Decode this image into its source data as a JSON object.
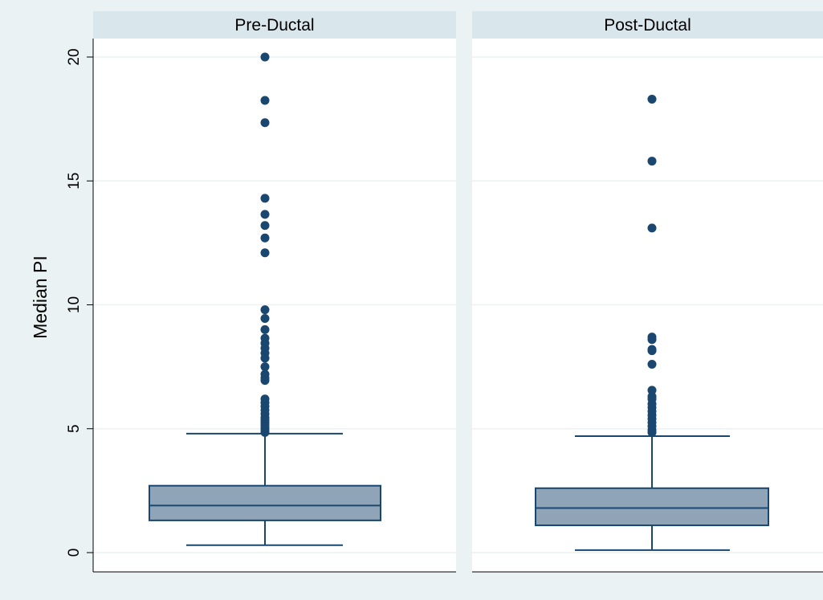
{
  "chart_data": {
    "type": "boxplot",
    "ylabel": "Median PI",
    "ylim": [
      0,
      20
    ],
    "yticks": [
      0,
      5,
      10,
      15,
      20
    ],
    "grid": true,
    "panels": [
      {
        "title": "Pre-Ductal",
        "whisker_low": 0.3,
        "q1": 1.3,
        "median": 1.9,
        "q3": 2.7,
        "whisker_high": 4.8,
        "outliers": [
          4.85,
          4.95,
          5.05,
          5.15,
          5.25,
          5.35,
          5.45,
          5.6,
          5.75,
          5.9,
          6.05,
          6.2,
          6.95,
          7.05,
          7.2,
          7.5,
          7.85,
          8.05,
          8.25,
          8.45,
          8.65,
          9.0,
          9.45,
          9.8,
          12.1,
          12.7,
          13.2,
          13.65,
          14.3,
          17.35,
          18.25,
          20.0
        ]
      },
      {
        "title": "Post-Ductal",
        "whisker_low": 0.1,
        "q1": 1.1,
        "median": 1.8,
        "q3": 2.6,
        "whisker_high": 4.7,
        "outliers": [
          4.85,
          4.95,
          5.1,
          5.25,
          5.4,
          5.55,
          5.7,
          5.85,
          6.0,
          6.2,
          6.3,
          6.55,
          7.6,
          8.15,
          8.2,
          8.6,
          8.7,
          13.1,
          15.8,
          18.3
        ]
      }
    ],
    "colors": {
      "background": "#eaf2f3",
      "plot_bg": "#ffffff",
      "strip_bg": "#d9e6eb",
      "grid": "#eaf2f3",
      "box_fill": "#90a4b8",
      "line": "#1a476f",
      "marker": "#1a476f"
    }
  }
}
